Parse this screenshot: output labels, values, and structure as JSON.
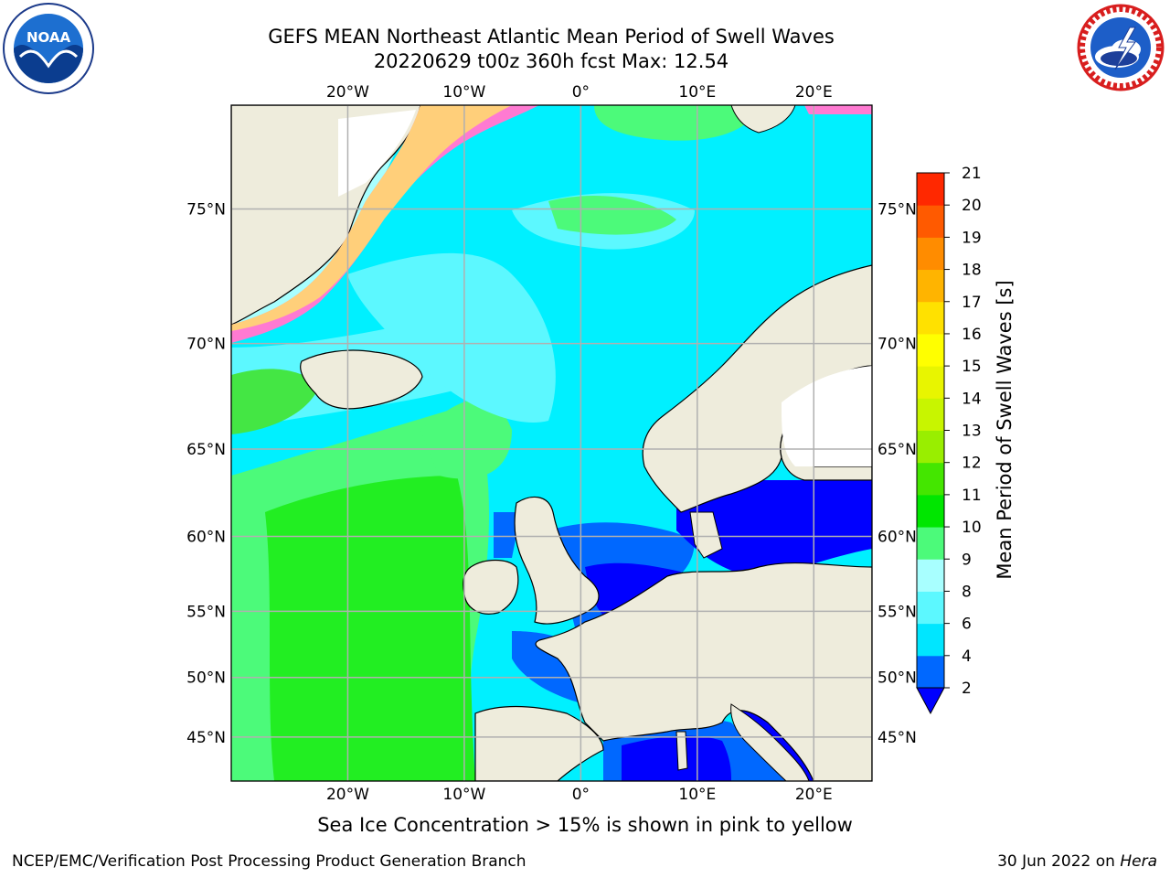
{
  "title_line1": "GEFS MEAN Northeast Atlantic Mean Period of Swell Waves",
  "title_line2": "20220629 t00z 360h fcst   Max: 12.54",
  "caption": "Sea Ice Concentration > 15% is shown in pink to yellow",
  "footer_left": "NCEP/EMC/Verification Post Processing Product Generation Branch",
  "footer_date": "30 Jun 2022 on ",
  "footer_host": "Hera",
  "logos": {
    "left": {
      "icon": "noaa-logo-icon",
      "text": "NOAA"
    },
    "right": {
      "icon": "nws-logo-icon"
    }
  },
  "map": {
    "lon_range": [
      -30,
      25
    ],
    "lat_range": [
      41,
      78
    ],
    "lon_ticks": [
      {
        "value": -20,
        "label": "20°W"
      },
      {
        "value": -10,
        "label": "10°W"
      },
      {
        "value": 0,
        "label": "0°"
      },
      {
        "value": 10,
        "label": "10°E"
      },
      {
        "value": 20,
        "label": "20°E"
      }
    ],
    "lat_ticks": [
      {
        "value": 75,
        "label": "75°N"
      },
      {
        "value": 70,
        "label": "70°N"
      },
      {
        "value": 65,
        "label": "65°N"
      },
      {
        "value": 60,
        "label": "60°N"
      },
      {
        "value": 55,
        "label": "55°N"
      },
      {
        "value": 50,
        "label": "50°N"
      },
      {
        "value": 45,
        "label": "45°N"
      }
    ],
    "colors": {
      "land": "#eeecdc",
      "ice_free": "#ffffff",
      "grid": "#b0b0b0",
      "coast": "#000000"
    }
  },
  "colorbar": {
    "label": "Mean Period of Swell Waves [s]",
    "ticks": [
      "2",
      "4",
      "6",
      "8",
      "9",
      "10",
      "11",
      "12",
      "13",
      "14",
      "15",
      "16",
      "17",
      "18",
      "19",
      "20",
      "21"
    ],
    "colors": [
      "#0068ff",
      "#00e6ff",
      "#5cf8ff",
      "#a8ffff",
      "#4cfa7a",
      "#00e600",
      "#44e600",
      "#99ee00",
      "#c8f500",
      "#e8f500",
      "#ffff00",
      "#ffe100",
      "#ffb400",
      "#ff8c00",
      "#ff5a00",
      "#ff2800"
    ],
    "extend_color": "#0000ff"
  }
}
